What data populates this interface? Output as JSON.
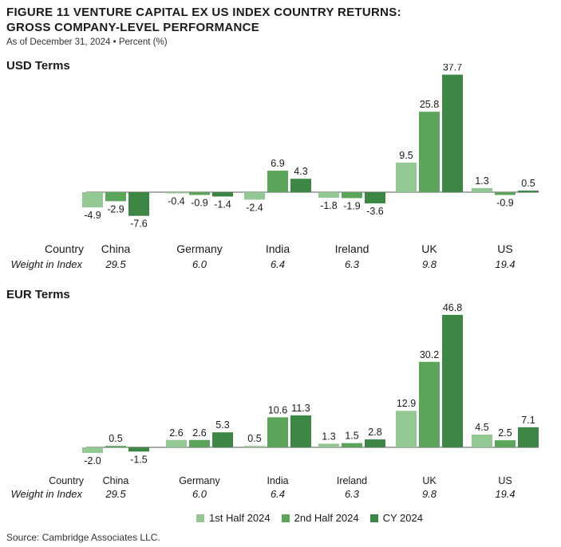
{
  "figure": {
    "title_line1": "FIGURE 11   VENTURE CAPITAL EX US INDEX COUNTRY RETURNS:",
    "title_line2": "GROSS COMPANY-LEVEL PERFORMANCE",
    "subtitle": "As of December 31, 2024 • Percent (%)",
    "source": "Source: Cambridge Associates LLC."
  },
  "labels": {
    "country_row": "Country",
    "weight_row": "Weight in Index"
  },
  "colors": {
    "h1": "#93c892",
    "h2": "#5aa55a",
    "cy": "#3d8745"
  },
  "chart_data": [
    {
      "type": "bar",
      "title": "USD Terms",
      "categories": [
        "China",
        "Germany",
        "India",
        "Ireland",
        "UK",
        "US"
      ],
      "weights": [
        "29.5",
        "6.0",
        "6.4",
        "6.3",
        "9.8",
        "19.4"
      ],
      "series": [
        {
          "name": "1st Half 2024",
          "values": [
            -4.9,
            -0.4,
            -2.4,
            -1.8,
            9.5,
            1.3
          ]
        },
        {
          "name": "2nd Half 2024",
          "values": [
            -2.9,
            -0.9,
            6.9,
            -1.9,
            25.8,
            -0.9
          ]
        },
        {
          "name": "CY 2024",
          "values": [
            -7.6,
            -1.4,
            4.3,
            -3.6,
            37.7,
            0.5
          ]
        }
      ]
    },
    {
      "type": "bar",
      "title": "EUR Terms",
      "categories": [
        "China",
        "Germany",
        "India",
        "Ireland",
        "UK",
        "US"
      ],
      "weights": [
        "29.5",
        "6.0",
        "6.4",
        "6.3",
        "9.8",
        "19.4"
      ],
      "series": [
        {
          "name": "1st Half 2024",
          "values": [
            -2.0,
            2.6,
            0.5,
            1.3,
            12.9,
            4.5
          ]
        },
        {
          "name": "2nd Half 2024",
          "values": [
            0.5,
            2.6,
            10.6,
            1.5,
            30.2,
            2.5
          ]
        },
        {
          "name": "CY 2024",
          "values": [
            -1.5,
            5.3,
            11.3,
            2.8,
            46.8,
            7.1
          ]
        }
      ]
    }
  ],
  "legend": [
    {
      "label": "1st Half 2024",
      "color_key": "h1"
    },
    {
      "label": "2nd Half 2024",
      "color_key": "h2"
    },
    {
      "label": "CY 2024",
      "color_key": "cy"
    }
  ]
}
